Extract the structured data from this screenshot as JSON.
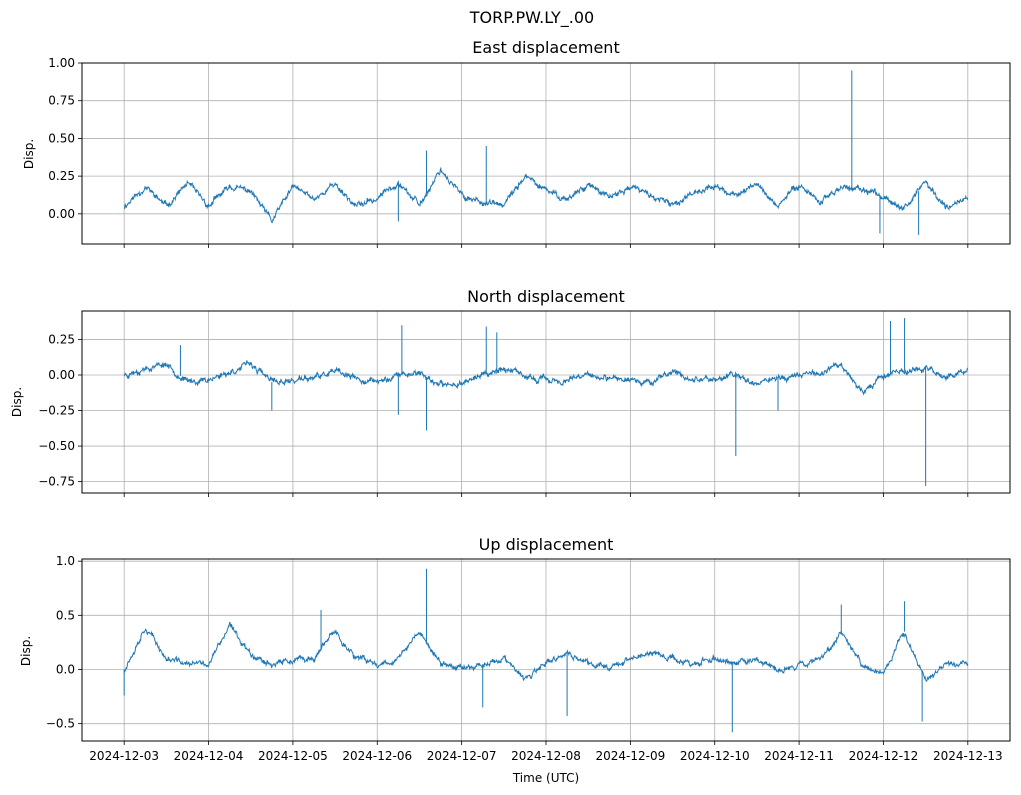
{
  "figure": {
    "title": "TORP.PW.LY_.00",
    "xlabel": "Time (UTC)",
    "x_tick_labels": [
      "2024-12-03",
      "2024-12-04",
      "2024-12-05",
      "2024-12-06",
      "2024-12-07",
      "2024-12-08",
      "2024-12-09",
      "2024-12-10",
      "2024-12-11",
      "2024-12-12",
      "2024-12-13"
    ]
  },
  "chart_data": [
    {
      "type": "line",
      "title": "East displacement",
      "ylabel": "Disp.",
      "xlabel": "",
      "xlim": [
        "2024-12-02T12:00",
        "2024-12-13T12:00"
      ],
      "ylim": [
        -0.2,
        1.0
      ],
      "yticks": [
        1.0,
        0.75,
        0.5,
        0.25,
        0.0
      ],
      "ytick_labels": [
        "1.00",
        "0.75",
        "0.50",
        "0.25",
        "0.00"
      ],
      "grid": true,
      "color": "#1f77b4",
      "series": [
        {
          "x": [
            "2024-12-03T00:00",
            "2024-12-03T06:00",
            "2024-12-03T12:00",
            "2024-12-03T18:00",
            "2024-12-04T00:00",
            "2024-12-04T06:00",
            "2024-12-04T12:00",
            "2024-12-04T18:00",
            "2024-12-05T00:00",
            "2024-12-05T06:00",
            "2024-12-05T12:00",
            "2024-12-05T18:00",
            "2024-12-06T00:00",
            "2024-12-06T06:00",
            "2024-12-06T12:00",
            "2024-12-06T18:00",
            "2024-12-07T00:00",
            "2024-12-07T06:00",
            "2024-12-07T12:00",
            "2024-12-07T18:00",
            "2024-12-08T00:00",
            "2024-12-08T06:00",
            "2024-12-08T12:00",
            "2024-12-08T18:00",
            "2024-12-09T00:00",
            "2024-12-09T06:00",
            "2024-12-09T12:00",
            "2024-12-09T18:00",
            "2024-12-10T00:00",
            "2024-12-10T06:00",
            "2024-12-10T12:00",
            "2024-12-10T18:00",
            "2024-12-11T00:00",
            "2024-12-11T06:00",
            "2024-12-11T12:00",
            "2024-12-11T18:00",
            "2024-12-12T00:00",
            "2024-12-12T06:00",
            "2024-12-12T12:00",
            "2024-12-12T18:00",
            "2024-12-13T00:00"
          ],
          "y": [
            0.05,
            0.18,
            0.05,
            0.2,
            0.05,
            0.18,
            0.15,
            -0.05,
            0.18,
            0.1,
            0.2,
            0.05,
            0.1,
            0.22,
            0.05,
            0.3,
            0.12,
            0.08,
            0.05,
            0.25,
            0.15,
            0.1,
            0.2,
            0.1,
            0.18,
            0.12,
            0.05,
            0.15,
            0.18,
            0.12,
            0.2,
            0.05,
            0.2,
            0.08,
            0.18,
            0.15,
            0.12,
            0.05,
            0.2,
            0.05,
            0.1
          ],
          "spikes": [
            [
              "2024-12-11T15:00",
              0.95
            ],
            [
              "2024-12-07T07:00",
              0.45
            ],
            [
              "2024-12-06T14:00",
              0.42
            ],
            [
              "2024-12-12T10:00",
              -0.14
            ],
            [
              "2024-12-11T23:00",
              -0.13
            ],
            [
              "2024-12-06T06:00",
              -0.05
            ]
          ]
        }
      ]
    },
    {
      "type": "line",
      "title": "North displacement",
      "ylabel": "Disp.",
      "xlabel": "",
      "xlim": [
        "2024-12-02T12:00",
        "2024-12-13T12:00"
      ],
      "ylim": [
        -0.83,
        0.45
      ],
      "yticks": [
        0.25,
        0.0,
        -0.25,
        -0.5,
        -0.75
      ],
      "ytick_labels": [
        "0.25",
        "0.00",
        "−0.25",
        "−0.50",
        "−0.75"
      ],
      "grid": true,
      "color": "#1f77b4",
      "series": [
        {
          "x": [
            "2024-12-03T00:00",
            "2024-12-03T06:00",
            "2024-12-03T12:00",
            "2024-12-03T18:00",
            "2024-12-04T00:00",
            "2024-12-04T06:00",
            "2024-12-04T12:00",
            "2024-12-04T18:00",
            "2024-12-05T00:00",
            "2024-12-05T06:00",
            "2024-12-05T12:00",
            "2024-12-05T18:00",
            "2024-12-06T00:00",
            "2024-12-06T06:00",
            "2024-12-06T12:00",
            "2024-12-06T18:00",
            "2024-12-07T00:00",
            "2024-12-07T06:00",
            "2024-12-07T12:00",
            "2024-12-07T18:00",
            "2024-12-08T00:00",
            "2024-12-08T06:00",
            "2024-12-08T12:00",
            "2024-12-08T18:00",
            "2024-12-09T00:00",
            "2024-12-09T06:00",
            "2024-12-09T12:00",
            "2024-12-09T18:00",
            "2024-12-10T00:00",
            "2024-12-10T06:00",
            "2024-12-10T12:00",
            "2024-12-10T18:00",
            "2024-12-11T00:00",
            "2024-12-11T06:00",
            "2024-12-11T12:00",
            "2024-12-11T18:00",
            "2024-12-12T00:00",
            "2024-12-12T06:00",
            "2024-12-12T12:00",
            "2024-12-12T18:00",
            "2024-12-13T00:00"
          ],
          "y": [
            0.0,
            0.05,
            0.08,
            -0.05,
            -0.03,
            0.02,
            0.08,
            -0.05,
            -0.04,
            -0.02,
            0.02,
            -0.03,
            -0.05,
            0.0,
            0.02,
            -0.08,
            -0.05,
            0.0,
            0.05,
            -0.02,
            -0.03,
            -0.05,
            0.0,
            -0.04,
            -0.02,
            -0.05,
            0.02,
            -0.03,
            -0.03,
            0.0,
            -0.05,
            -0.02,
            0.0,
            0.02,
            0.08,
            -0.12,
            0.0,
            0.03,
            0.05,
            -0.02,
            0.03
          ],
          "spikes": [
            [
              "2024-12-12T12:00",
              -0.78
            ],
            [
              "2024-12-10T06:00",
              -0.57
            ],
            [
              "2024-12-06T14:00",
              -0.39
            ],
            [
              "2024-12-06T07:00",
              0.35
            ],
            [
              "2024-12-12T02:00",
              0.38
            ],
            [
              "2024-12-12T06:00",
              0.4
            ],
            [
              "2024-12-07T07:00",
              0.34
            ],
            [
              "2024-12-07T10:00",
              0.3
            ],
            [
              "2024-12-06T06:00",
              -0.28
            ],
            [
              "2024-12-04T18:00",
              -0.25
            ],
            [
              "2024-12-10T18:00",
              -0.25
            ],
            [
              "2024-12-03T16:00",
              0.21
            ]
          ]
        }
      ]
    },
    {
      "type": "line",
      "title": "Up displacement",
      "ylabel": "Disp.",
      "xlabel": "Time (UTC)",
      "xlim": [
        "2024-12-02T12:00",
        "2024-12-13T12:00"
      ],
      "ylim": [
        -0.66,
        1.02
      ],
      "yticks": [
        1.0,
        0.5,
        0.0,
        -0.5
      ],
      "ytick_labels": [
        "1.0",
        "0.5",
        "0.0",
        "−0.5"
      ],
      "grid": true,
      "color": "#1f77b4",
      "series": [
        {
          "x": [
            "2024-12-03T00:00",
            "2024-12-03T06:00",
            "2024-12-03T12:00",
            "2024-12-03T18:00",
            "2024-12-04T00:00",
            "2024-12-04T06:00",
            "2024-12-04T12:00",
            "2024-12-04T18:00",
            "2024-12-05T00:00",
            "2024-12-05T06:00",
            "2024-12-05T12:00",
            "2024-12-05T18:00",
            "2024-12-06T00:00",
            "2024-12-06T06:00",
            "2024-12-06T12:00",
            "2024-12-06T18:00",
            "2024-12-07T00:00",
            "2024-12-07T06:00",
            "2024-12-07T12:00",
            "2024-12-07T18:00",
            "2024-12-08T00:00",
            "2024-12-08T06:00",
            "2024-12-08T12:00",
            "2024-12-08T18:00",
            "2024-12-09T00:00",
            "2024-12-09T06:00",
            "2024-12-09T12:00",
            "2024-12-09T18:00",
            "2024-12-10T00:00",
            "2024-12-10T06:00",
            "2024-12-10T12:00",
            "2024-12-10T18:00",
            "2024-12-11T00:00",
            "2024-12-11T06:00",
            "2024-12-11T12:00",
            "2024-12-11T18:00",
            "2024-12-12T00:00",
            "2024-12-12T06:00",
            "2024-12-12T12:00",
            "2024-12-12T18:00",
            "2024-12-13T00:00"
          ],
          "y": [
            0.0,
            0.4,
            0.1,
            0.05,
            0.05,
            0.4,
            0.15,
            0.05,
            0.08,
            0.1,
            0.35,
            0.1,
            0.05,
            0.1,
            0.35,
            0.05,
            0.02,
            0.05,
            0.1,
            -0.1,
            0.05,
            0.15,
            0.05,
            0.03,
            0.1,
            0.15,
            0.1,
            0.05,
            0.1,
            0.05,
            0.1,
            -0.02,
            0.05,
            0.1,
            0.35,
            0.05,
            -0.05,
            0.35,
            -0.1,
            0.05,
            0.05
          ],
          "spikes": [
            [
              "2024-12-06T14:00",
              0.93
            ],
            [
              "2024-12-10T05:00",
              -0.58
            ],
            [
              "2024-12-12T06:00",
              0.63
            ],
            [
              "2024-12-11T12:00",
              0.6
            ],
            [
              "2024-12-05T08:00",
              0.55
            ],
            [
              "2024-12-08T06:00",
              -0.43
            ],
            [
              "2024-12-12T11:00",
              -0.48
            ],
            [
              "2024-12-03T00:00",
              -0.24
            ],
            [
              "2024-12-07T06:00",
              -0.35
            ]
          ]
        }
      ]
    }
  ]
}
